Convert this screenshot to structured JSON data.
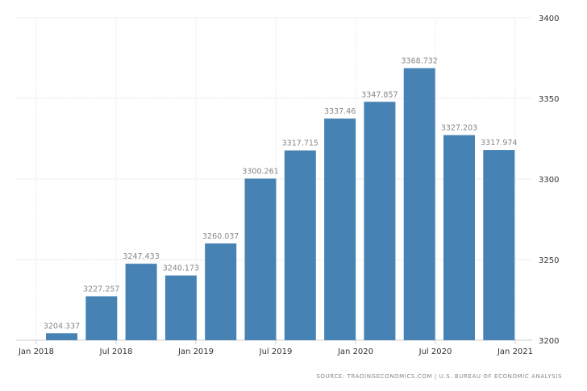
{
  "chart_data": {
    "type": "bar",
    "title": "",
    "xlabel": "",
    "ylabel": "",
    "x": [
      "2018-03",
      "2018-06",
      "2018-09",
      "2018-12",
      "2019-03",
      "2019-06",
      "2019-09",
      "2019-12",
      "2020-03",
      "2020-06",
      "2020-09",
      "2020-12"
    ],
    "values": [
      3204.337,
      3227.257,
      3247.433,
      3240.173,
      3260.037,
      3300.261,
      3317.715,
      3337.46,
      3347.857,
      3368.732,
      3327.203,
      3317.974
    ],
    "data_labels": [
      "3204.337",
      "3227.257",
      "3247.433",
      "3240.173",
      "3260.037",
      "3300.261",
      "3317.715",
      "3337.46",
      "3347.857",
      "3368.732",
      "3327.203",
      "3317.974"
    ],
    "ylim": [
      3200,
      3400
    ],
    "y_ticks": [
      "3200",
      "3250",
      "3300",
      "3350",
      "3400"
    ],
    "x_ticks": [
      "Jan 2018",
      "Jul 2018",
      "Jan 2019",
      "Jul 2019",
      "Jan 2020",
      "Jul 2020",
      "Jan 2021"
    ],
    "y_axis_side": "right",
    "grid": true,
    "bar_color": "#4682b4",
    "source": "SOURCE: TRADINGECONOMICS.COM | U.S. BUREAU OF ECONOMIC ANALYSIS"
  }
}
